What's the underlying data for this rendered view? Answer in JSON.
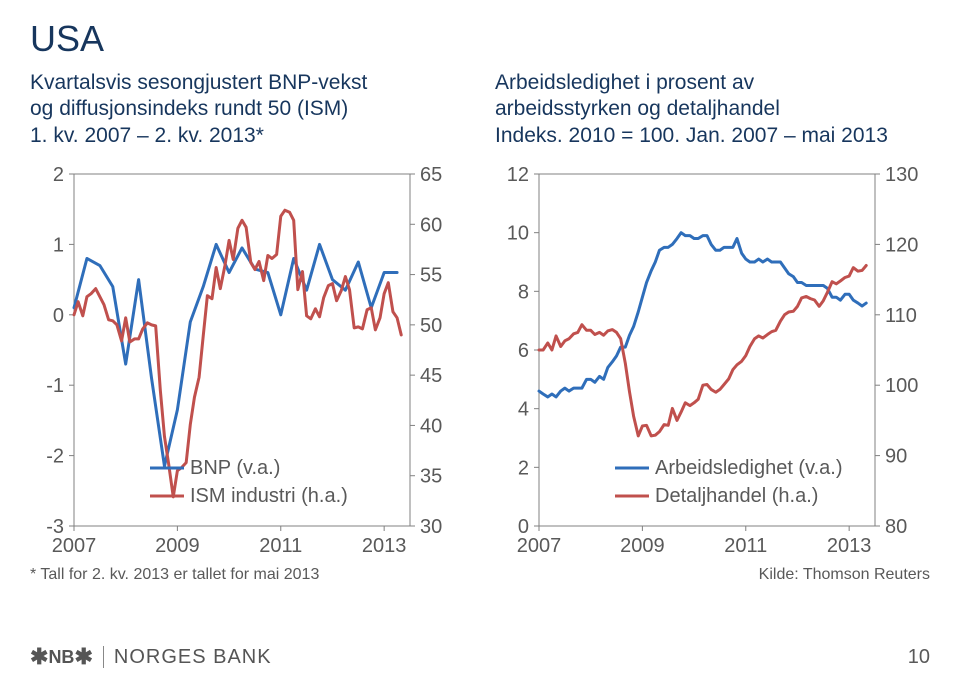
{
  "page": {
    "title": "USA",
    "number": "10"
  },
  "logo": {
    "nb_text": "NB",
    "bank_text": "NORGES BANK"
  },
  "left_chart": {
    "type": "dual-axis-line",
    "title_line1": "Kvartalsvis sesongjustert BNP-vekst",
    "title_line2": "og diffusjonsindeks rundt 50 (ISM)",
    "title_line3": "1. kv. 2007 – 2. kv. 2013*",
    "footnote": "* Tall for 2. kv. 2013 er tallet for mai 2013",
    "left_axis": {
      "min": -3,
      "max": 2,
      "step": 1
    },
    "right_axis": {
      "min": 30,
      "max": 65,
      "step": 5
    },
    "x_axis": {
      "min": 2007,
      "max": 2013.5,
      "ticks": [
        2007,
        2009,
        2011,
        2013
      ]
    },
    "colors": {
      "bnp": "#2f6eba",
      "ism": "#c0504d",
      "axis": "#808080",
      "label": "#595959"
    },
    "legend": {
      "bnp": "BNP (v.a.)",
      "ism": "ISM industri (h.a.)"
    },
    "bnp": [
      [
        2007.0,
        0.1
      ],
      [
        2007.25,
        0.8
      ],
      [
        2007.5,
        0.7
      ],
      [
        2007.75,
        0.4
      ],
      [
        2008.0,
        -0.7
      ],
      [
        2008.25,
        0.5
      ],
      [
        2008.5,
        -0.9
      ],
      [
        2008.75,
        -2.15
      ],
      [
        2009.0,
        -1.35
      ],
      [
        2009.25,
        -0.1
      ],
      [
        2009.5,
        0.4
      ],
      [
        2009.75,
        1.0
      ],
      [
        2010.0,
        0.6
      ],
      [
        2010.25,
        0.95
      ],
      [
        2010.5,
        0.65
      ],
      [
        2010.75,
        0.6
      ],
      [
        2011.0,
        0.0
      ],
      [
        2011.25,
        0.8
      ],
      [
        2011.5,
        0.35
      ],
      [
        2011.75,
        1.0
      ],
      [
        2012.0,
        0.5
      ],
      [
        2012.25,
        0.35
      ],
      [
        2012.5,
        0.75
      ],
      [
        2012.75,
        0.1
      ],
      [
        2013.0,
        0.6
      ],
      [
        2013.25,
        0.6
      ]
    ],
    "ism": [
      [
        2007.0,
        51
      ],
      [
        2007.08,
        52.3
      ],
      [
        2007.17,
        50.9
      ],
      [
        2007.25,
        52.8
      ],
      [
        2007.33,
        53.1
      ],
      [
        2007.42,
        53.6
      ],
      [
        2007.5,
        52.8
      ],
      [
        2007.58,
        52
      ],
      [
        2007.67,
        50.5
      ],
      [
        2007.75,
        50.4
      ],
      [
        2007.83,
        50
      ],
      [
        2007.92,
        48.4
      ],
      [
        2008.0,
        50.7
      ],
      [
        2008.08,
        48.3
      ],
      [
        2008.17,
        48.6
      ],
      [
        2008.25,
        48.6
      ],
      [
        2008.33,
        49.6
      ],
      [
        2008.42,
        50.2
      ],
      [
        2008.5,
        50.0
      ],
      [
        2008.58,
        49.9
      ],
      [
        2008.67,
        43.5
      ],
      [
        2008.75,
        38.9
      ],
      [
        2008.83,
        36.2
      ],
      [
        2008.92,
        32.9
      ],
      [
        2009.0,
        35.5
      ],
      [
        2009.08,
        35.8
      ],
      [
        2009.17,
        36.3
      ],
      [
        2009.25,
        40.1
      ],
      [
        2009.33,
        42.8
      ],
      [
        2009.42,
        44.8
      ],
      [
        2009.5,
        48.9
      ],
      [
        2009.58,
        52.9
      ],
      [
        2009.67,
        52.6
      ],
      [
        2009.75,
        55.7
      ],
      [
        2009.83,
        53.6
      ],
      [
        2009.92,
        55.9
      ],
      [
        2010.0,
        58.4
      ],
      [
        2010.08,
        56.5
      ],
      [
        2010.17,
        59.6
      ],
      [
        2010.25,
        60.4
      ],
      [
        2010.33,
        59.7
      ],
      [
        2010.42,
        56.2
      ],
      [
        2010.5,
        55.5
      ],
      [
        2010.58,
        56.3
      ],
      [
        2010.67,
        54.4
      ],
      [
        2010.75,
        56.9
      ],
      [
        2010.83,
        56.6
      ],
      [
        2010.92,
        57
      ],
      [
        2011.0,
        60.8
      ],
      [
        2011.08,
        61.4
      ],
      [
        2011.17,
        61.2
      ],
      [
        2011.25,
        60.4
      ],
      [
        2011.33,
        53.5
      ],
      [
        2011.42,
        55.3
      ],
      [
        2011.5,
        50.9
      ],
      [
        2011.58,
        50.6
      ],
      [
        2011.67,
        51.6
      ],
      [
        2011.75,
        50.8
      ],
      [
        2011.83,
        52.7
      ],
      [
        2011.92,
        53.9
      ],
      [
        2012.0,
        54.1
      ],
      [
        2012.08,
        52.4
      ],
      [
        2012.17,
        53.4
      ],
      [
        2012.25,
        54.8
      ],
      [
        2012.33,
        53.5
      ],
      [
        2012.42,
        49.7
      ],
      [
        2012.5,
        49.8
      ],
      [
        2012.58,
        49.6
      ],
      [
        2012.67,
        51.5
      ],
      [
        2012.75,
        51.7
      ],
      [
        2012.83,
        49.5
      ],
      [
        2012.92,
        50.7
      ],
      [
        2013.0,
        53.1
      ],
      [
        2013.08,
        54.2
      ],
      [
        2013.17,
        51.3
      ],
      [
        2013.25,
        50.7
      ],
      [
        2013.33,
        49.0
      ]
    ]
  },
  "right_chart": {
    "type": "dual-axis-line",
    "title_line1": "Arbeidsledighet i prosent av",
    "title_line2": "arbeidsstyrken og detaljhandel",
    "title_line3": "Indeks. 2010 = 100. Jan. 2007 – mai 2013",
    "footnote": "Kilde: Thomson Reuters",
    "left_axis": {
      "min": 0,
      "max": 12,
      "step": 2
    },
    "right_axis": {
      "min": 80,
      "max": 130,
      "step": 10
    },
    "x_axis": {
      "min": 2007,
      "max": 2013.5,
      "ticks": [
        2007,
        2009,
        2011,
        2013
      ]
    },
    "colors": {
      "unemp": "#2f6eba",
      "retail": "#c0504d",
      "axis": "#808080",
      "label": "#595959"
    },
    "legend": {
      "unemp": "Arbeidsledighet (v.a.)",
      "retail": "Detaljhandel (h.a.)"
    },
    "unemp": [
      [
        2007.0,
        4.6
      ],
      [
        2007.08,
        4.5
      ],
      [
        2007.17,
        4.4
      ],
      [
        2007.25,
        4.5
      ],
      [
        2007.33,
        4.4
      ],
      [
        2007.42,
        4.6
      ],
      [
        2007.5,
        4.7
      ],
      [
        2007.58,
        4.6
      ],
      [
        2007.67,
        4.7
      ],
      [
        2007.75,
        4.7
      ],
      [
        2007.83,
        4.7
      ],
      [
        2007.92,
        5.0
      ],
      [
        2008.0,
        5.0
      ],
      [
        2008.08,
        4.9
      ],
      [
        2008.17,
        5.1
      ],
      [
        2008.25,
        5.0
      ],
      [
        2008.33,
        5.4
      ],
      [
        2008.42,
        5.6
      ],
      [
        2008.5,
        5.8
      ],
      [
        2008.58,
        6.1
      ],
      [
        2008.67,
        6.1
      ],
      [
        2008.75,
        6.5
      ],
      [
        2008.83,
        6.8
      ],
      [
        2008.92,
        7.3
      ],
      [
        2009.0,
        7.8
      ],
      [
        2009.08,
        8.3
      ],
      [
        2009.17,
        8.7
      ],
      [
        2009.25,
        9.0
      ],
      [
        2009.33,
        9.4
      ],
      [
        2009.42,
        9.5
      ],
      [
        2009.5,
        9.5
      ],
      [
        2009.58,
        9.6
      ],
      [
        2009.67,
        9.8
      ],
      [
        2009.75,
        10.0
      ],
      [
        2009.83,
        9.9
      ],
      [
        2009.92,
        9.9
      ],
      [
        2010.0,
        9.8
      ],
      [
        2010.08,
        9.8
      ],
      [
        2010.17,
        9.9
      ],
      [
        2010.25,
        9.9
      ],
      [
        2010.33,
        9.6
      ],
      [
        2010.42,
        9.4
      ],
      [
        2010.5,
        9.4
      ],
      [
        2010.58,
        9.5
      ],
      [
        2010.67,
        9.5
      ],
      [
        2010.75,
        9.5
      ],
      [
        2010.83,
        9.8
      ],
      [
        2010.92,
        9.3
      ],
      [
        2011.0,
        9.1
      ],
      [
        2011.08,
        9.0
      ],
      [
        2011.17,
        9.0
      ],
      [
        2011.25,
        9.1
      ],
      [
        2011.33,
        9.0
      ],
      [
        2011.42,
        9.1
      ],
      [
        2011.5,
        9.0
      ],
      [
        2011.58,
        9.0
      ],
      [
        2011.67,
        9.0
      ],
      [
        2011.75,
        8.8
      ],
      [
        2011.83,
        8.6
      ],
      [
        2011.92,
        8.5
      ],
      [
        2012.0,
        8.3
      ],
      [
        2012.08,
        8.3
      ],
      [
        2012.17,
        8.2
      ],
      [
        2012.25,
        8.2
      ],
      [
        2012.33,
        8.2
      ],
      [
        2012.42,
        8.2
      ],
      [
        2012.5,
        8.2
      ],
      [
        2012.58,
        8.1
      ],
      [
        2012.67,
        7.8
      ],
      [
        2012.75,
        7.8
      ],
      [
        2012.83,
        7.7
      ],
      [
        2012.92,
        7.9
      ],
      [
        2013.0,
        7.9
      ],
      [
        2013.08,
        7.7
      ],
      [
        2013.17,
        7.6
      ],
      [
        2013.25,
        7.5
      ],
      [
        2013.33,
        7.6
      ]
    ],
    "retail": [
      [
        2007.0,
        105
      ],
      [
        2007.08,
        105
      ],
      [
        2007.17,
        106
      ],
      [
        2007.25,
        105
      ],
      [
        2007.33,
        107
      ],
      [
        2007.42,
        105.5
      ],
      [
        2007.5,
        106.3
      ],
      [
        2007.58,
        106.6
      ],
      [
        2007.67,
        107.3
      ],
      [
        2007.75,
        107.5
      ],
      [
        2007.83,
        108.6
      ],
      [
        2007.92,
        107.8
      ],
      [
        2008.0,
        107.8
      ],
      [
        2008.08,
        107.2
      ],
      [
        2008.17,
        107.5
      ],
      [
        2008.25,
        107.1
      ],
      [
        2008.33,
        107.7
      ],
      [
        2008.42,
        107.9
      ],
      [
        2008.5,
        107.5
      ],
      [
        2008.58,
        106.6
      ],
      [
        2008.67,
        103.1
      ],
      [
        2008.75,
        99.1
      ],
      [
        2008.83,
        95.6
      ],
      [
        2008.92,
        92.8
      ],
      [
        2009.0,
        94.2
      ],
      [
        2009.08,
        94.3
      ],
      [
        2009.17,
        92.8
      ],
      [
        2009.25,
        92.9
      ],
      [
        2009.33,
        93.4
      ],
      [
        2009.42,
        94.4
      ],
      [
        2009.5,
        94.3
      ],
      [
        2009.58,
        96.7
      ],
      [
        2009.67,
        95.0
      ],
      [
        2009.75,
        96.2
      ],
      [
        2009.83,
        97.5
      ],
      [
        2009.92,
        97.1
      ],
      [
        2010.0,
        97.5
      ],
      [
        2010.08,
        98.0
      ],
      [
        2010.17,
        100.0
      ],
      [
        2010.25,
        100.1
      ],
      [
        2010.33,
        99.4
      ],
      [
        2010.42,
        99.0
      ],
      [
        2010.5,
        99.4
      ],
      [
        2010.58,
        100.1
      ],
      [
        2010.67,
        100.9
      ],
      [
        2010.75,
        102.2
      ],
      [
        2010.83,
        102.9
      ],
      [
        2010.92,
        103.4
      ],
      [
        2011.0,
        104.2
      ],
      [
        2011.08,
        105.5
      ],
      [
        2011.17,
        106.6
      ],
      [
        2011.25,
        107.0
      ],
      [
        2011.33,
        106.7
      ],
      [
        2011.42,
        107.2
      ],
      [
        2011.5,
        107.6
      ],
      [
        2011.58,
        107.8
      ],
      [
        2011.67,
        109.1
      ],
      [
        2011.75,
        110.0
      ],
      [
        2011.83,
        110.4
      ],
      [
        2011.92,
        110.5
      ],
      [
        2012.0,
        111.2
      ],
      [
        2012.08,
        112.4
      ],
      [
        2012.17,
        112.6
      ],
      [
        2012.25,
        112.3
      ],
      [
        2012.33,
        112.1
      ],
      [
        2012.42,
        111.2
      ],
      [
        2012.5,
        112.0
      ],
      [
        2012.58,
        113.2
      ],
      [
        2012.67,
        114.7
      ],
      [
        2012.75,
        114.4
      ],
      [
        2012.83,
        114.8
      ],
      [
        2012.92,
        115.3
      ],
      [
        2013.0,
        115.5
      ],
      [
        2013.08,
        116.7
      ],
      [
        2013.17,
        116.2
      ],
      [
        2013.25,
        116.3
      ],
      [
        2013.33,
        117.0
      ]
    ]
  }
}
